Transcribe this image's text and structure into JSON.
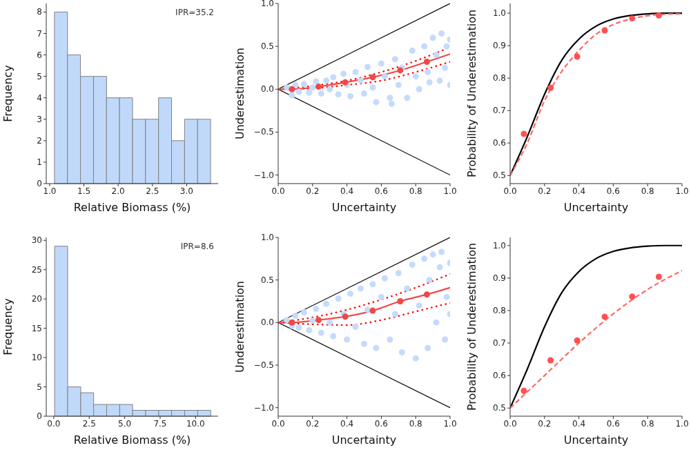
{
  "chart_data": [
    {
      "type": "histogram",
      "xlabel": "Relative Biomass (%)",
      "ylabel": "Frequency",
      "annotations": [
        "IPR=35.2"
      ],
      "bins": [
        1.07,
        1.26,
        1.45,
        1.64,
        1.83,
        2.02,
        2.21,
        2.4,
        2.59,
        2.78,
        2.97,
        3.16,
        3.35
      ],
      "values": [
        8,
        6,
        5,
        5,
        4,
        4,
        3,
        3,
        4,
        2,
        3,
        3
      ],
      "color": "#c0d9fb",
      "xlim": [
        0.95,
        3.46
      ],
      "ylim": [
        0,
        8.4
      ],
      "xticks": [
        {
          "value": 1,
          "label": "1.0"
        },
        1.5,
        {
          "value": 2,
          "label": "2.0"
        },
        2.5,
        {
          "value": 3,
          "label": "3.0"
        }
      ],
      "yticks": [
        0,
        1,
        2,
        3,
        4,
        5,
        6,
        7,
        8
      ]
    },
    {
      "type": "scatter",
      "xlabel": "Uncertainty",
      "ylabel": "Underestimation",
      "xlim": [
        0,
        1
      ],
      "ylim": [
        -1.1,
        1
      ],
      "xticks": [
        {
          "value": 0,
          "label": "0.0"
        },
        0.2,
        0.4,
        0.6,
        0.8,
        {
          "value": 1,
          "label": "1.0"
        }
      ],
      "yticks": [
        {
          "value": -1,
          "label": "−1.0"
        },
        {
          "value": -0.5,
          "label": "−0.5"
        },
        {
          "value": 0,
          "label": "0.0"
        },
        0.5,
        {
          "value": 1,
          "label": "1.0"
        }
      ],
      "series": [
        {
          "type": "scatter",
          "marker": "circle",
          "color": "#c5dbfb",
          "x": [
            0.05,
            0.08,
            0.1,
            0.12,
            0.15,
            0.18,
            0.2,
            0.22,
            0.25,
            0.28,
            0.3,
            0.32,
            0.35,
            0.38,
            0.4,
            0.42,
            0.45,
            0.48,
            0.5,
            0.52,
            0.55,
            0.57,
            0.6,
            0.62,
            0.65,
            0.66,
            0.68,
            0.7,
            0.72,
            0.75,
            0.78,
            0.8,
            0.82,
            0.85,
            0.87,
            0.88,
            0.9,
            0.92,
            0.94,
            0.95,
            0.97,
            0.98,
            1.0,
            1.0
          ],
          "values": [
            0.02,
            -0.07,
            0.05,
            -0.03,
            0.06,
            -0.04,
            0.02,
            0.09,
            -0.05,
            0.1,
            0.0,
            0.14,
            -0.06,
            0.18,
            0.05,
            -0.08,
            0.2,
            0.1,
            -0.05,
            0.26,
            0.02,
            -0.15,
            0.3,
            0.15,
            -0.1,
            -0.17,
            0.35,
            0.05,
            0.25,
            -0.1,
            0.45,
            0.15,
            0.0,
            0.5,
            0.2,
            0.08,
            0.6,
            0.4,
            0.1,
            0.65,
            0.25,
            0.5,
            0.05,
            0.58
          ]
        },
        {
          "type": "line",
          "color": "#000000",
          "x": [
            0,
            1
          ],
          "values": [
            0,
            1
          ]
        },
        {
          "type": "line",
          "color": "#000000",
          "x": [
            0,
            1
          ],
          "values": [
            0,
            -1
          ]
        },
        {
          "type": "line",
          "color": "#ff0000",
          "line_style": "dotted",
          "x": [
            0,
            0.2,
            0.4,
            0.6,
            0.8,
            1
          ],
          "values": [
            0,
            0.04,
            0.1,
            0.2,
            0.33,
            0.49
          ]
        },
        {
          "type": "line",
          "color": "#ff0000",
          "line_style": "dotted",
          "x": [
            0,
            0.2,
            0.4,
            0.6,
            0.8,
            1
          ],
          "values": [
            0,
            0.01,
            0.05,
            0.1,
            0.2,
            0.32
          ]
        },
        {
          "type": "line",
          "color": "#f04848",
          "x": [
            0,
            0.08,
            0.235,
            0.39,
            0.55,
            0.71,
            0.865,
            1
          ],
          "values": [
            0,
            0,
            0.03,
            0.08,
            0.14,
            0.22,
            0.32,
            0.41
          ]
        },
        {
          "type": "scatter",
          "marker": "circle",
          "color": "#f04848",
          "x": [
            0.08,
            0.235,
            0.39,
            0.55,
            0.71,
            0.865
          ],
          "values": [
            0,
            0.03,
            0.08,
            0.14,
            0.22,
            0.32
          ]
        }
      ]
    },
    {
      "type": "line",
      "xlabel": "Uncertainty",
      "ylabel": "Probability of Underestimation",
      "xlim": [
        0,
        1
      ],
      "ylim": [
        0.475,
        1.03
      ],
      "xticks": [
        {
          "value": 0,
          "label": "0.0"
        },
        0.2,
        0.4,
        0.6,
        0.8,
        {
          "value": 1,
          "label": "1.0"
        }
      ],
      "yticks": [
        0.5,
        0.6,
        0.7,
        0.8,
        0.9,
        {
          "value": 1,
          "label": "1.0"
        }
      ],
      "series": [
        {
          "type": "line",
          "color": "#000000",
          "x": [
            0,
            0.1,
            0.2,
            0.3,
            0.4,
            0.5,
            0.6,
            0.7,
            0.8,
            0.9,
            1
          ],
          "values": [
            0.5,
            0.62,
            0.75,
            0.855,
            0.92,
            0.96,
            0.982,
            0.993,
            0.998,
            1.0,
            1.0
          ]
        },
        {
          "type": "line",
          "color": "#ff6666",
          "line_style": "dashed",
          "x": [
            0,
            0.1,
            0.2,
            0.3,
            0.4,
            0.5,
            0.6,
            0.7,
            0.8,
            0.9,
            1
          ],
          "values": [
            0.5,
            0.6,
            0.73,
            0.82,
            0.885,
            0.935,
            0.965,
            0.982,
            0.992,
            0.997,
            0.998
          ]
        },
        {
          "type": "scatter",
          "marker": "circle",
          "color": "#ff5050",
          "x": [
            0.08,
            0.235,
            0.39,
            0.55,
            0.71,
            0.865
          ],
          "values": [
            0.628,
            0.77,
            0.866,
            0.947,
            0.984,
            0.993
          ]
        }
      ]
    },
    {
      "type": "histogram",
      "xlabel": "Relative Biomass (%)",
      "ylabel": "Frequency",
      "annotations": [
        "IPR=8.6"
      ],
      "bins": [
        0.06,
        0.98,
        1.9,
        2.81,
        3.73,
        4.65,
        5.56,
        6.48,
        7.4,
        8.31,
        9.23,
        10.15,
        11.07
      ],
      "values": [
        29,
        5,
        4,
        2,
        2,
        2,
        1,
        1,
        1,
        1,
        1,
        1
      ],
      "color": "#c0d9fb",
      "xlim": [
        -0.53,
        11.59
      ],
      "ylim": [
        0,
        30.5
      ],
      "xticks": [
        {
          "value": 0,
          "label": "0.0"
        },
        2.5,
        {
          "value": 5,
          "label": "5.0"
        },
        7.5,
        {
          "value": 10,
          "label": "10.0"
        }
      ],
      "yticks": [
        0,
        5,
        10,
        15,
        20,
        25,
        30
      ]
    },
    {
      "type": "scatter",
      "xlabel": "Uncertainty",
      "ylabel": "Underestimation",
      "xlim": [
        0,
        1
      ],
      "ylim": [
        -1.1,
        1
      ],
      "xticks": [
        {
          "value": 0,
          "label": "0.0"
        },
        0.2,
        0.4,
        0.6,
        0.8,
        {
          "value": 1,
          "label": "1.0"
        }
      ],
      "yticks": [
        {
          "value": -1,
          "label": "−1.0"
        },
        {
          "value": -0.5,
          "label": "−0.5"
        },
        {
          "value": 0,
          "label": "0.0"
        },
        0.5,
        {
          "value": 1,
          "label": "1.0"
        }
      ],
      "series": [
        {
          "type": "scatter",
          "marker": "circle",
          "color": "#c5dbfb",
          "x": [
            0.05,
            0.08,
            0.1,
            0.12,
            0.15,
            0.18,
            0.2,
            0.22,
            0.25,
            0.28,
            0.3,
            0.32,
            0.35,
            0.38,
            0.4,
            0.42,
            0.45,
            0.48,
            0.5,
            0.52,
            0.55,
            0.57,
            0.6,
            0.62,
            0.65,
            0.68,
            0.7,
            0.72,
            0.75,
            0.78,
            0.8,
            0.82,
            0.85,
            0.87,
            0.88,
            0.9,
            0.92,
            0.94,
            0.95,
            0.97,
            0.98,
            1.0,
            1.0
          ],
          "values": [
            0.03,
            -0.04,
            0.08,
            -0.06,
            0.12,
            -0.09,
            0.02,
            0.16,
            -0.12,
            0.22,
            0.0,
            -0.16,
            0.28,
            0.1,
            -0.2,
            0.34,
            -0.05,
            0.4,
            -0.25,
            0.15,
            0.45,
            -0.3,
            0.3,
            0.52,
            -0.2,
            0.1,
            0.58,
            -0.35,
            0.4,
            0.68,
            -0.42,
            0.2,
            0.75,
            -0.3,
            0.5,
            0.8,
            0.0,
            0.65,
            0.83,
            -0.2,
            0.3,
            0.7,
            0.1
          ]
        },
        {
          "type": "line",
          "color": "#000000",
          "x": [
            0,
            1
          ],
          "values": [
            0,
            1
          ]
        },
        {
          "type": "line",
          "color": "#000000",
          "x": [
            0,
            1
          ],
          "values": [
            0,
            -1
          ]
        },
        {
          "type": "line",
          "color": "#ff0000",
          "line_style": "dotted",
          "x": [
            0,
            0.2,
            0.4,
            0.6,
            0.8,
            1
          ],
          "values": [
            0,
            0.06,
            0.15,
            0.27,
            0.41,
            0.57
          ]
        },
        {
          "type": "line",
          "color": "#ff0000",
          "line_style": "dotted",
          "x": [
            0,
            0.2,
            0.4,
            0.6,
            0.8,
            1
          ],
          "values": [
            0,
            -0.02,
            -0.03,
            0.03,
            0.13,
            0.23
          ]
        },
        {
          "type": "line",
          "color": "#f04848",
          "x": [
            0,
            0.08,
            0.235,
            0.39,
            0.55,
            0.71,
            0.865,
            1
          ],
          "values": [
            0,
            0,
            0.03,
            0.07,
            0.14,
            0.25,
            0.33,
            0.41
          ]
        },
        {
          "type": "scatter",
          "marker": "circle",
          "color": "#f04848",
          "x": [
            0.08,
            0.235,
            0.39,
            0.55,
            0.71,
            0.865
          ],
          "values": [
            0,
            0.03,
            0.07,
            0.14,
            0.25,
            0.33
          ]
        }
      ]
    },
    {
      "type": "line",
      "xlabel": "Uncertainty",
      "ylabel": "Probability of Underestimation",
      "xlim": [
        0,
        1
      ],
      "ylim": [
        0.475,
        1.025
      ],
      "xticks": [
        {
          "value": 0,
          "label": "0.0"
        },
        0.2,
        0.4,
        0.6,
        0.8,
        {
          "value": 1,
          "label": "1.0"
        }
      ],
      "yticks": [
        0.5,
        0.6,
        0.7,
        0.8,
        0.9,
        {
          "value": 1,
          "label": "1.0"
        }
      ],
      "series": [
        {
          "type": "line",
          "color": "#000000",
          "x": [
            0,
            0.1,
            0.2,
            0.3,
            0.4,
            0.5,
            0.6,
            0.7,
            0.8,
            0.9,
            1
          ],
          "values": [
            0.5,
            0.62,
            0.75,
            0.855,
            0.92,
            0.96,
            0.982,
            0.993,
            0.998,
            1.0,
            1.0
          ]
        },
        {
          "type": "line",
          "color": "#ff6666",
          "line_style": "dashed",
          "x": [
            0,
            0.2,
            0.4,
            0.6,
            0.8,
            1
          ],
          "values": [
            0.5,
            0.6,
            0.7,
            0.79,
            0.865,
            0.923
          ]
        },
        {
          "type": "scatter",
          "marker": "circle",
          "color": "#ff5050",
          "x": [
            0.08,
            0.235,
            0.39,
            0.55,
            0.71,
            0.865
          ],
          "values": [
            0.553,
            0.647,
            0.708,
            0.781,
            0.843,
            0.904
          ]
        }
      ]
    }
  ]
}
